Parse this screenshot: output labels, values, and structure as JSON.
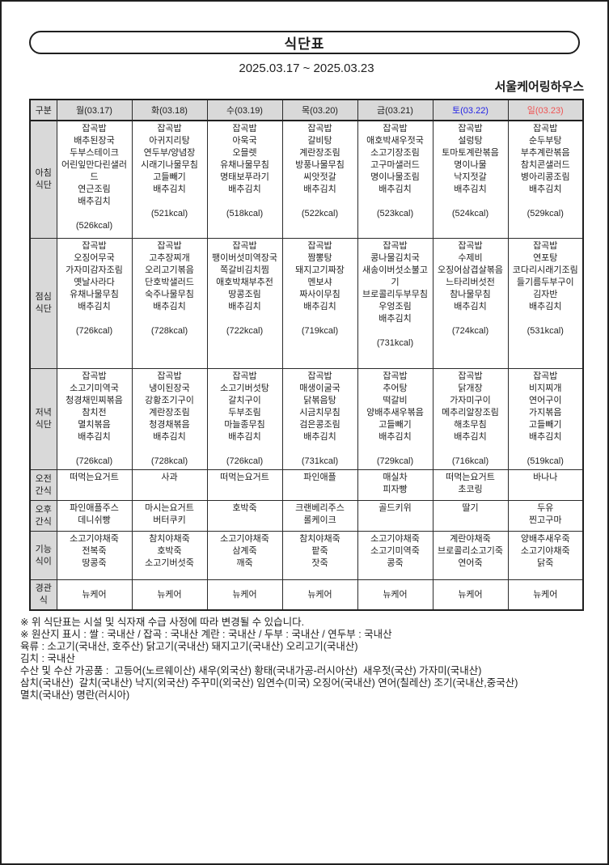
{
  "page": {
    "title": "식단표",
    "date_range": "2025.03.17 ~ 2025.03.23",
    "facility": "서울케어링하우스"
  },
  "colors": {
    "header_bg": "#d9d9d9",
    "saturday_text": "#2222e6",
    "sunday_text": "#ef5353"
  },
  "table": {
    "corner": "구분",
    "days": [
      {
        "label": "월(03.17)",
        "style": "color:#1f1f1f"
      },
      {
        "label": "화(03.18)",
        "style": "color:#1f1f1f"
      },
      {
        "label": "수(03.19)",
        "style": "color:#1f1f1f"
      },
      {
        "label": "목(03.20)",
        "style": "color:#1f1f1f"
      },
      {
        "label": "금(03.21)",
        "style": "color:#1f1f1f"
      },
      {
        "label": "토(03.22)",
        "style": "color:#2222e6"
      },
      {
        "label": "일(03.23)",
        "style": "color:#ef5353"
      }
    ],
    "rows": [
      {
        "label": "아침\n식단",
        "cells": [
          [
            "잡곡밥",
            "배추된장국",
            "두부스테이크",
            "어린잎만다린샐러드",
            "연근조림",
            "배추김치",
            "",
            "(526kcal)"
          ],
          [
            "잡곡밥",
            "아귀지리탕",
            "연두부/양념장",
            "시래기나물무침",
            "고들빼기",
            "배추김치",
            "",
            "(521kcal)"
          ],
          [
            "잡곡밥",
            "아욱국",
            "오믈렛",
            "유채나물무침",
            "명태보푸라기",
            "배추김치",
            "",
            "(518kcal)"
          ],
          [
            "잡곡밥",
            "갈비탕",
            "계란장조림",
            "방풍나물무침",
            "씨앗젓갈",
            "배추김치",
            "",
            "(522kcal)"
          ],
          [
            "잡곡밥",
            "애호박새우젓국",
            "소고기장조림",
            "고구마샐러드",
            "명이나물조림",
            "배추김치",
            "",
            "(523kcal)"
          ],
          [
            "잡곡밥",
            "설렁탕",
            "토마토계란볶음",
            "명이나물",
            "낙지젓갈",
            "배추김치",
            "",
            "(524kcal)"
          ],
          [
            "잡곡밥",
            "순두부탕",
            "부추계란볶음",
            "참치콘샐러드",
            "병아리콩조림",
            "배추김치",
            "",
            "(529kcal)"
          ]
        ]
      },
      {
        "label": "점심\n식단",
        "cells": [
          [
            "잡곡밥",
            "오징어무국",
            "가자미감자조림",
            "옛날사라다",
            "유채나물무침",
            "배추김치",
            "",
            "(726kcal)"
          ],
          [
            "잡곡밥",
            "고추장찌개",
            "오리고기볶음",
            "단호박샐러드",
            "숙주나물무침",
            "배추김치",
            "",
            "(728kcal)"
          ],
          [
            "잡곡밥",
            "팽이버섯미역장국",
            "쪽갈비김치찜",
            "애호박채부추전",
            "땅콩조림",
            "배추김치",
            "",
            "(722kcal)"
          ],
          [
            "잡곡밥",
            "짬뽕탕",
            "돼지고기짜장",
            "멘보샤",
            "짜사이무침",
            "배추김치",
            "",
            "(719kcal)"
          ],
          [
            "잡곡밥",
            "콩나물김치국",
            "새송이버섯소불고기",
            "브로콜리두부무침",
            "우엉조림",
            "배추김치",
            "",
            "(731kcal)"
          ],
          [
            "잡곡밥",
            "수제비",
            "오징어삼겹살볶음",
            "느타리버섯전",
            "참나물무침",
            "배추김치",
            "",
            "(724kcal)"
          ],
          [
            "잡곡밥",
            "연포탕",
            "코다리시래기조림",
            "들기름두부구이",
            "김자반",
            "배추김치",
            "",
            "(531kcal)"
          ]
        ]
      },
      {
        "label": "저녁\n식단",
        "cells": [
          [
            "잡곡밥",
            "소고기미역국",
            "청경채민찌볶음",
            "참치전",
            "멸치볶음",
            "배추김치",
            "",
            "(726kcal)"
          ],
          [
            "잡곡밥",
            "냉이된장국",
            "강황조기구이",
            "계란장조림",
            "청경채볶음",
            "배추김치",
            "",
            "(728kcal)"
          ],
          [
            "잡곡밥",
            "소고기버섯탕",
            "갈치구이",
            "두부조림",
            "마늘종무침",
            "배추김치",
            "",
            "(726kcal)"
          ],
          [
            "잡곡밥",
            "매생이굴국",
            "닭볶음탕",
            "시금치무침",
            "검은콩조림",
            "배추김치",
            "",
            "(731kcal)"
          ],
          [
            "잡곡밥",
            "추어탕",
            "떡갈비",
            "양배추새우볶음",
            "고들빼기",
            "배추김치",
            "",
            "(729kcal)"
          ],
          [
            "잡곡밥",
            "닭개장",
            "가자미구이",
            "메추리알장조림",
            "해초무침",
            "배추김치",
            "",
            "(716kcal)"
          ],
          [
            "잡곡밥",
            "비지찌개",
            "연어구이",
            "가지볶음",
            "고들빼기",
            "배추김치",
            "",
            "(519kcal)"
          ]
        ]
      },
      {
        "label": "오전\n간식",
        "cells": [
          [
            "떠먹는요거트"
          ],
          [
            "사과"
          ],
          [
            "떠먹는요거트"
          ],
          [
            "파인애플"
          ],
          [
            "매실차",
            "피자빵"
          ],
          [
            "떠먹는요거트",
            "초코링"
          ],
          [
            "바나나"
          ]
        ]
      },
      {
        "label": "오후\n간식",
        "cells": [
          [
            "파인애플주스",
            "데니쉬빵"
          ],
          [
            "마시는요거트",
            "버터쿠키"
          ],
          [
            "호박죽"
          ],
          [
            "크랜베리주스",
            "롤케이크"
          ],
          [
            "골드키위"
          ],
          [
            "딸기"
          ],
          [
            "두유",
            "찐고구마"
          ]
        ]
      },
      {
        "label": "기능\n식이",
        "cells": [
          [
            "소고기야채죽",
            "전복죽",
            "땅콩죽"
          ],
          [
            "참치야채죽",
            "호박죽",
            "소고기버섯죽"
          ],
          [
            "소고기야채죽",
            "삼계죽",
            "깨죽"
          ],
          [
            "참치야채죽",
            "팥죽",
            "잣죽"
          ],
          [
            "소고기야채죽",
            "소고기미역죽",
            "콩죽"
          ],
          [
            "계란야채죽",
            "브로콜리소고기죽",
            "연어죽"
          ],
          [
            "양배추새우죽",
            "소고기야채죽",
            "닭죽"
          ]
        ]
      },
      {
        "label": "경관\n식",
        "cells": [
          [
            "뉴케어"
          ],
          [
            "뉴케어"
          ],
          [
            "뉴케어"
          ],
          [
            "뉴케어"
          ],
          [
            "뉴케어"
          ],
          [
            "뉴케어"
          ],
          [
            "뉴케어"
          ]
        ]
      }
    ]
  },
  "footer": {
    "lines": [
      "※ 위 식단표는 시설 및 식자재 수급 사정에 따라 변경될 수 있습니다.",
      "※ 원산지 표시 : 쌀 : 국내산 / 잡곡 : 국내산 계란 : 국내산 / 두부 : 국내산 / 연두부 : 국내산",
      "육류 : 소고기(국내산, 호주산) 닭고기(국내산) 돼지고기(국내산) 오리고기(국내산)",
      "김치 : 국내산",
      "수산 및 수산 가공품 :  고등어(노르웨이산) 새우(외국산) 황태(국내가공-러시아산)  새우젓(국산) 가자미(국내산)",
      "삼치(국내산)  갈치(국내산) 낙지(외국산) 주꾸미(외국산) 임연수(미국) 오징어(국내산) 연어(칠레산) 조기(국내산,중국산)",
      "멸치(국내산) 명란(러시아)"
    ]
  }
}
